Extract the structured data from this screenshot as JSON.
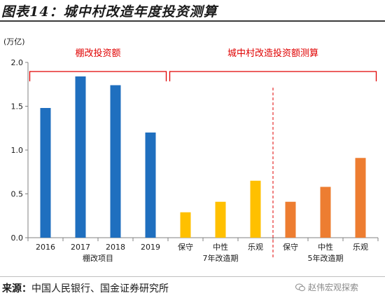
{
  "title": "图表14：城中村改造年度投资测算",
  "source": {
    "label": "来源：",
    "text": "中国人民银行、国金证券研究所"
  },
  "watermark": {
    "text": "赵伟宏观探索",
    "icon": "wechat-icon"
  },
  "chart_data": {
    "type": "bar",
    "ylabel": "(万亿)",
    "ylim": [
      0,
      2.0
    ],
    "yticks": [
      "0.0",
      "0.5",
      "1.0",
      "1.5",
      "2.0"
    ],
    "categories": [
      "2016",
      "2017",
      "2018",
      "2019",
      "保守",
      "中性",
      "乐观",
      "保守",
      "中性",
      "乐观"
    ],
    "values": [
      1.48,
      1.84,
      1.74,
      1.2,
      0.29,
      0.41,
      0.65,
      0.41,
      0.58,
      0.91
    ],
    "colors": [
      "#1f6fbf",
      "#1f6fbf",
      "#1f6fbf",
      "#1f6fbf",
      "#ffc000",
      "#ffc000",
      "#ffc000",
      "#ed7d31",
      "#ed7d31",
      "#ed7d31"
    ],
    "groups": [
      {
        "label": "棚改项目",
        "bracket_label": "棚改投资额"
      },
      {
        "label": "7年改造期",
        "bracket_label": "城中村改造投资额测算"
      },
      {
        "label": "5年改造期"
      }
    ],
    "annotation_color": "#e00000"
  }
}
